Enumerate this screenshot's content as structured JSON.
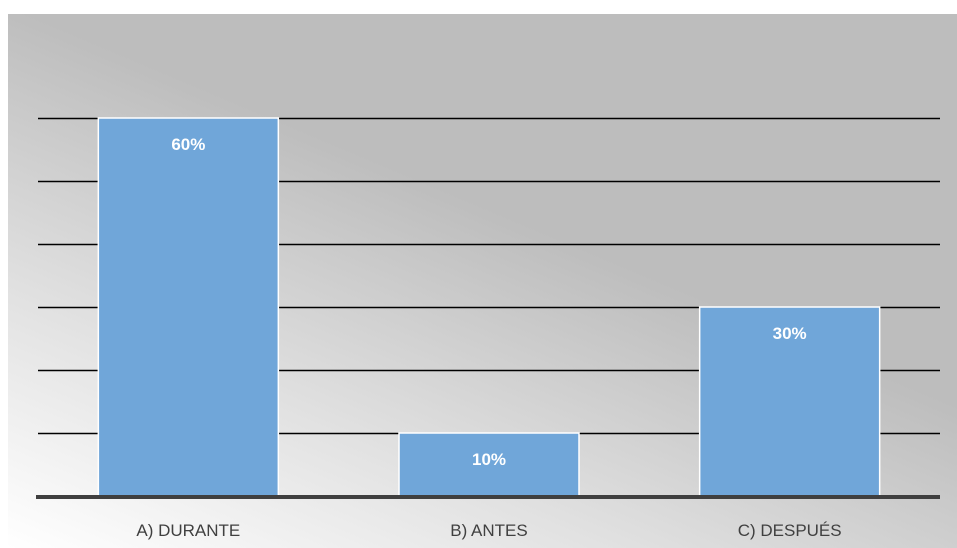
{
  "chart_data": {
    "type": "bar",
    "categories": [
      "A) DURANTE",
      "B) ANTES",
      "C) DESPUÉS"
    ],
    "values": [
      60,
      10,
      30
    ],
    "data_labels": [
      "60%",
      "10%",
      "30%"
    ],
    "title": "",
    "xlabel": "",
    "ylabel": "",
    "ylim": [
      0,
      70
    ],
    "gridlines": [
      10,
      20,
      30,
      40,
      50,
      60
    ],
    "grid": true,
    "legend": "none",
    "bar_color": "#70a6d9",
    "bar_border_color": "#ffffff",
    "gridline_color": "#000000",
    "axis_color": "#3f3f3f",
    "background_gradient": [
      "#ffffff",
      "#e2e2e2",
      "#bdbdbd"
    ]
  }
}
